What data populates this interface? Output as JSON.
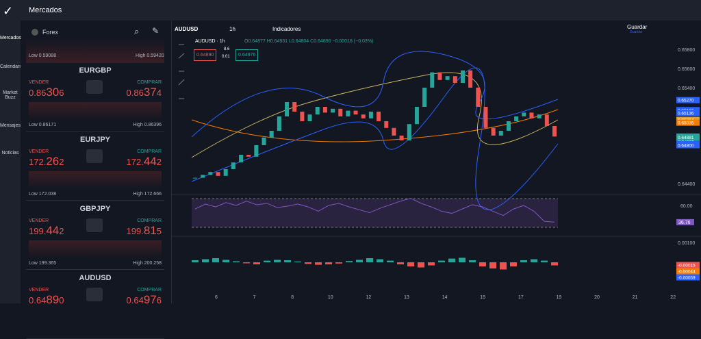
{
  "app": {
    "title": "Mercados",
    "nav": [
      "Mercados",
      "Calendario",
      "Market Buzz",
      "Mensajes",
      "Noticias"
    ],
    "section": "Forex",
    "top_card": {
      "low": "Low 0.59088",
      "high": "High 0.59420"
    },
    "cards": [
      {
        "symbol": "EURGBP",
        "sell_label": "VENDER",
        "buy_label": "COMPRAR",
        "sell": "0.86306",
        "buy": "0.86374",
        "low": "Low 0.86171",
        "high": "High 0.86396"
      },
      {
        "symbol": "EURJPY",
        "sell_label": "VENDER",
        "buy_label": "COMPRAR",
        "sell": "172.262",
        "buy": "172.442",
        "low": "Low 172.038",
        "high": "High 172.666"
      },
      {
        "symbol": "GBPJPY",
        "sell_label": "VENDER",
        "buy_label": "COMPRAR",
        "sell": "199.442",
        "buy": "199.815",
        "low": "Low 199.365",
        "high": "High 200.258"
      },
      {
        "symbol": "AUDUSD",
        "sell_label": "VENDER",
        "buy_label": "COMPRAR",
        "sell": "0.64890",
        "buy": "0.64976"
      }
    ]
  },
  "toolbar": {
    "symbol": "AUDUSD",
    "interval": "1h",
    "indicators": "Indicadores",
    "save": "Guardar",
    "save_sub": "Guardar"
  },
  "chart": {
    "legend": "AUDUSD · 1h",
    "ohlc": "O0.64877 H0.64931 L0.64804 C0.64890 −0.00018 (−0.03%)",
    "spread": "8.6",
    "size": "0.01",
    "sell_box": "0.64890",
    "buy_box": "0.64976",
    "closes": [
      0.6446,
      0.6449,
      0.6452,
      0.6448,
      0.6455,
      0.6462,
      0.647,
      0.6468,
      0.648,
      0.6488,
      0.6495,
      0.651,
      0.6525,
      0.6515,
      0.6505,
      0.6512,
      0.652,
      0.6514,
      0.6518,
      0.651,
      0.6516,
      0.6512,
      0.6508,
      0.6515,
      0.6505,
      0.6498,
      0.649,
      0.6485,
      0.6502,
      0.652,
      0.654,
      0.6556,
      0.6548,
      0.6552,
      0.6545,
      0.6558,
      0.654,
      0.652,
      0.6498,
      0.649,
      0.6495,
      0.6505,
      0.651,
      0.6514,
      0.6508,
      0.6512,
      0.65,
      0.6489
    ],
    "price_axis": [
      "0.65800",
      "0.65600",
      "0.65400",
      "0.64400"
    ],
    "badges": [
      {
        "label": "0.65270",
        "color": "#2962ff"
      },
      {
        "label": "0.65166",
        "color": "#2962ff"
      },
      {
        "label": "0.65136",
        "color": "#2962ff"
      },
      {
        "label": "0.65064",
        "color": "#e0a030"
      },
      {
        "label": "0.65035",
        "color": "#f57c00"
      },
      {
        "label": "0.64890",
        "color": "#26a69a"
      },
      {
        "label": "0.64861",
        "color": "#2962ff"
      },
      {
        "label": "0.64881",
        "color": "#26a69a"
      },
      {
        "label": "0.64800",
        "color": "#2962ff"
      }
    ],
    "days": [
      "6",
      "7",
      "8",
      "10",
      "12",
      "13",
      "14",
      "15",
      "17",
      "19",
      "20",
      "21",
      "22"
    ],
    "rsi_label": "60.00",
    "rsi_badge": "36.76",
    "rsi": [
      55,
      62,
      58,
      64,
      60,
      66,
      61,
      63,
      57,
      59,
      62,
      58,
      52,
      60,
      63,
      58,
      54,
      50,
      56,
      61,
      66,
      70,
      63,
      58,
      52,
      49,
      55,
      61,
      58,
      52,
      46,
      55,
      60,
      52,
      38,
      36.76
    ],
    "macd_axis": "0.00100",
    "macd_badges": [
      {
        "label": "-0.00015",
        "color": "#ef5350"
      },
      {
        "label": "-0.00044",
        "color": "#f57c00"
      },
      {
        "label": "-0.00059",
        "color": "#2962ff"
      }
    ],
    "macd_hist": [
      0.0001,
      0.00015,
      0.0002,
      0.00012,
      5e-05,
      -5e-05,
      -0.0001,
      8e-05,
      0.00012,
      0.0001,
      4e-05,
      -8e-05,
      -0.00012,
      -0.0001,
      -6e-05,
      6e-05,
      0.00012,
      0.0002,
      0.00015,
      8e-05,
      -0.0001,
      -0.0002,
      -0.00025,
      -0.00015,
      8e-05,
      0.00018,
      0.00022,
      0.0001,
      -0.0002,
      -0.0003,
      -0.00035,
      -0.0002,
      0.0001,
      0.00015,
      8e-05,
      -0.00015
    ]
  }
}
